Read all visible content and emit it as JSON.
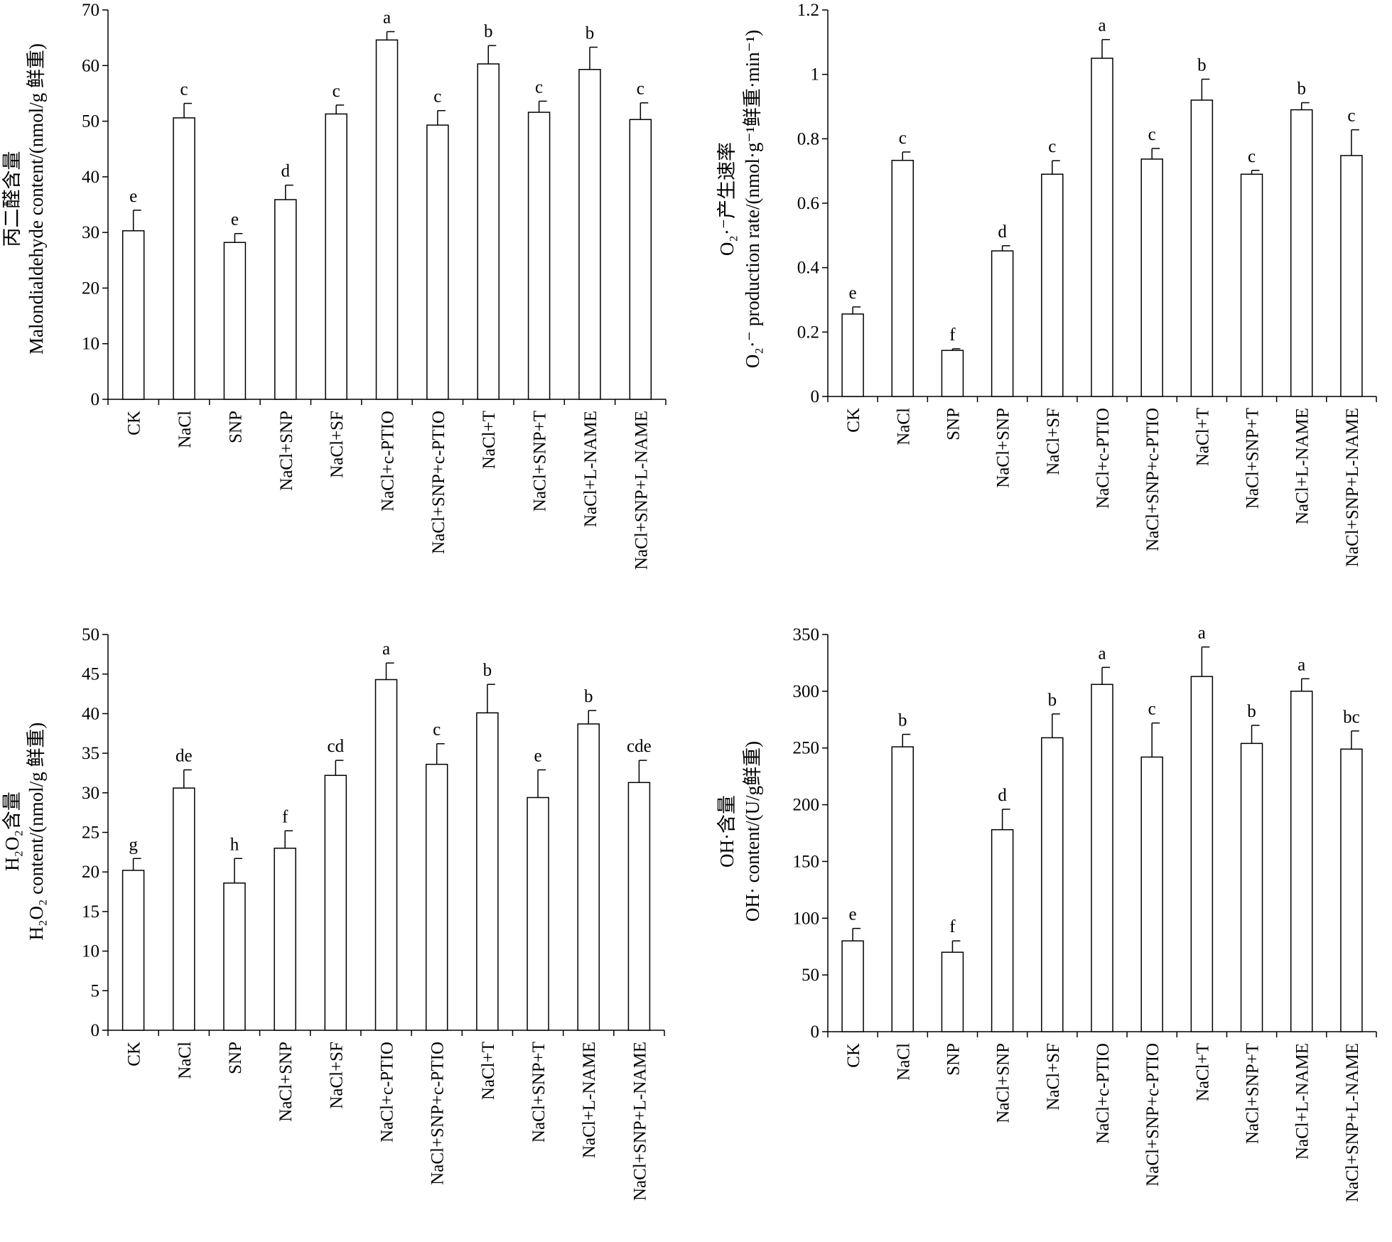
{
  "chart_data": [
    {
      "type": "bar",
      "ylabel_cn": "丙二醛含量",
      "ylabel_en": "Malondialdehyde content/(nmol/g 鲜重)",
      "ylim": [
        0,
        70
      ],
      "yticks": [
        "0",
        "10",
        "20",
        "30",
        "40",
        "50",
        "60",
        "70"
      ],
      "categories": [
        "CK",
        "NaCl",
        "SNP",
        "NaCl+SNP",
        "NaCl+SF",
        "NaCl+c-PTIO",
        "NaCl+SNP+c-PTIO",
        "NaCl+T",
        "NaCl+SNP+T",
        "NaCl+L-NAME",
        "NaCl+SNP+L-NAME"
      ],
      "values": [
        30.3,
        50.6,
        28.2,
        35.9,
        51.3,
        64.6,
        49.3,
        60.3,
        51.6,
        59.3,
        50.3
      ],
      "errors": [
        3.7,
        2.6,
        1.6,
        2.6,
        1.6,
        1.5,
        2.6,
        3.3,
        2.0,
        4.0,
        3.0
      ],
      "letters": [
        "e",
        "c",
        "e",
        "d",
        "c",
        "a",
        "c",
        "b",
        "c",
        "b",
        "c"
      ]
    },
    {
      "type": "bar",
      "ylabel_cn": "O₂·⁻产生速率",
      "ylabel_en": "O₂·⁻ production rate/(nmol·g⁻¹鲜重·min⁻¹)",
      "ylim": [
        0,
        1.2
      ],
      "yticks": [
        "0",
        "0.2",
        "0.4",
        "0.6",
        "0.8",
        "1",
        "1.2"
      ],
      "categories": [
        "CK",
        "NaCl",
        "SNP",
        "NaCl+SNP",
        "NaCl+SF",
        "NaCl+c-PTIO",
        "NaCl+SNP+c-PTIO",
        "NaCl+T",
        "NaCl+SNP+T",
        "NaCl+L-NAME",
        "NaCl+SNP+L-NAME"
      ],
      "values": [
        0.256,
        0.733,
        0.143,
        0.452,
        0.69,
        1.05,
        0.737,
        0.92,
        0.69,
        0.89,
        0.748
      ],
      "errors": [
        0.022,
        0.026,
        0.005,
        0.016,
        0.042,
        0.058,
        0.033,
        0.065,
        0.012,
        0.022,
        0.08
      ],
      "letters": [
        "e",
        "c",
        "f",
        "d",
        "c",
        "a",
        "c",
        "b",
        "c",
        "b",
        "c"
      ]
    },
    {
      "type": "bar",
      "ylabel_cn": "H₂O₂含量",
      "ylabel_en": "H₂O₂ content/(nmol/g 鲜重)",
      "ylim": [
        0,
        50
      ],
      "yticks": [
        "0",
        "5",
        "10",
        "15",
        "20",
        "25",
        "30",
        "35",
        "40",
        "45",
        "50"
      ],
      "categories": [
        "CK",
        "NaCl",
        "SNP",
        "NaCl+SNP",
        "NaCl+SF",
        "NaCl+c-PTIO",
        "NaCl+SNP+c-PTIO",
        "NaCl+T",
        "NaCl+SNP+T",
        "NaCl+L-NAME",
        "NaCl+SNP+L-NAME"
      ],
      "values": [
        20.2,
        30.6,
        18.6,
        23.0,
        32.2,
        44.3,
        33.6,
        40.1,
        29.4,
        38.7,
        31.3
      ],
      "errors": [
        1.5,
        2.3,
        3.1,
        2.2,
        1.9,
        2.1,
        2.6,
        3.6,
        3.5,
        1.7,
        2.8
      ],
      "letters": [
        "g",
        "de",
        "h",
        "f",
        "cd",
        "a",
        "c",
        "b",
        "e",
        "b",
        "cde"
      ]
    },
    {
      "type": "bar",
      "ylabel_cn": "OH·含量",
      "ylabel_en": "OH· content/(U/g鲜重)",
      "ylim": [
        0,
        350
      ],
      "yticks": [
        "0",
        "50",
        "100",
        "150",
        "200",
        "250",
        "300",
        "350"
      ],
      "categories": [
        "CK",
        "NaCl",
        "SNP",
        "NaCl+SNP",
        "NaCl+SF",
        "NaCl+c-PTIO",
        "NaCl+SNP+c-PTIO",
        "NaCl+T",
        "NaCl+SNP+T",
        "NaCl+L-NAME",
        "NaCl+SNP+L-NAME"
      ],
      "values": [
        80,
        251,
        70,
        178,
        259,
        306,
        242,
        313,
        254,
        300,
        249
      ],
      "errors": [
        11,
        11,
        10,
        18,
        21,
        15,
        30,
        26,
        16,
        11,
        16
      ],
      "letters": [
        "e",
        "b",
        "f",
        "d",
        "b",
        "a",
        "c",
        "a",
        "b",
        "a",
        "bc"
      ]
    }
  ]
}
